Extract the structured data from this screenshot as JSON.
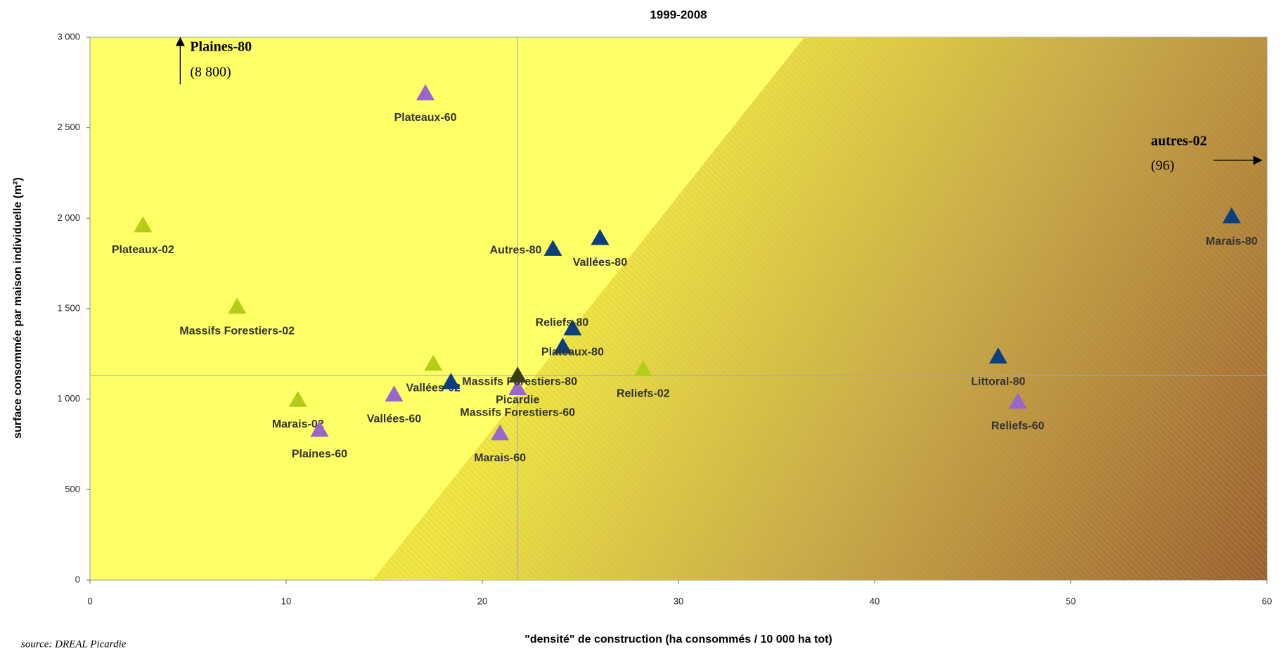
{
  "chart_data": {
    "type": "scatter",
    "title": "1999-2008",
    "x_label": "\"densité\" de construction (ha consommés / 10 000 ha tot)",
    "y_label": "surface consommée par maison individuelle (m²)",
    "source": "source: DREAL Picardie",
    "point_labels": [
      "Plateaux-02",
      "Massifs Forestiers-02",
      "Marais-02",
      "Vallées-02",
      "Reliefs-02",
      "Plateaux-60",
      "Plaines-60",
      "Vallées-60",
      "Marais-60",
      "Massifs Forestiers-60",
      "Reliefs-60",
      "Autres-80",
      "Vallées-80",
      "Reliefs-80",
      "Plateaux-80",
      "Massifs Forestiers-80",
      "Littoral-80",
      "Marais-80",
      "Picardie"
    ],
    "x": [
      2.7,
      7.5,
      10.6,
      17.5,
      28.2,
      17.1,
      11.7,
      15.5,
      20.9,
      21.8,
      47.3,
      23.6,
      26.0,
      24.6,
      24.1,
      18.4,
      46.3,
      58.2,
      21.8
    ],
    "values": [
      1960,
      1510,
      995,
      1195,
      1165,
      2690,
      830,
      1025,
      810,
      1060,
      985,
      1830,
      1890,
      1390,
      1290,
      1095,
      1235,
      2010,
      1130
    ],
    "colors": [
      "#b5cc18",
      "#b5cc18",
      "#b5cc18",
      "#b5cc18",
      "#b5cc18",
      "#9966cc",
      "#9966cc",
      "#9966cc",
      "#9966cc",
      "#9966cc",
      "#9966cc",
      "#0b3f7f",
      "#0b3f7f",
      "#0b3f7f",
      "#0b3f7f",
      "#0b3f7f",
      "#0b3f7f",
      "#0b3f7f",
      "#3a3f1a"
    ],
    "annotations": [
      {
        "label": "Plaines-80",
        "value": 8800,
        "value_label": "(8 800)",
        "x": 4.6,
        "direction": "up"
      },
      {
        "label": "autres-02",
        "value": 96,
        "value_label": "(96)",
        "y": 2320,
        "direction": "right"
      }
    ],
    "xlim": [
      0,
      60
    ],
    "xticks": [
      0,
      10,
      20,
      30,
      40,
      50,
      60
    ],
    "ylim": [
      0,
      3000
    ],
    "yticks": [
      0,
      500,
      {
        "value": 1000,
        "label": "1 000"
      },
      {
        "value": 1500,
        "label": "1 500"
      },
      {
        "value": 2000,
        "label": "2 000"
      },
      {
        "value": 2500,
        "label": "2 500"
      },
      {
        "value": 3000,
        "label": "3 000"
      }
    ]
  }
}
